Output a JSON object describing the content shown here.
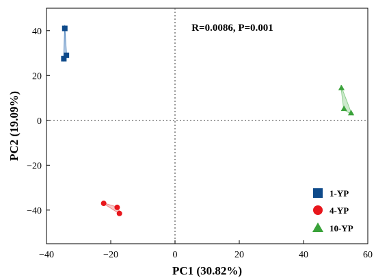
{
  "chart_data": {
    "type": "scatter",
    "xlabel": "PC1 (30.82%)",
    "ylabel": "PC2 (19.09%)",
    "annotation": "R=0.0086, P=0.001",
    "xlim": [
      -40,
      60
    ],
    "ylim": [
      -55,
      50
    ],
    "xticks": [
      -40,
      -20,
      0,
      20,
      40,
      60
    ],
    "yticks": [
      40,
      20,
      0,
      -20,
      -40
    ],
    "xtick_labels": [
      "−40",
      "−20",
      "0",
      "20",
      "40",
      "60"
    ],
    "ytick_labels": [
      "40",
      "20",
      "0",
      "−20",
      "−40"
    ],
    "reference_lines": {
      "x": 0,
      "y": 0,
      "style": "dotted"
    },
    "grid": false,
    "legend_position": "bottom-right",
    "series": [
      {
        "name": "1-YP",
        "marker": "square",
        "color": "#0e4a8a",
        "hull_color": "#5f8fc4",
        "points": [
          [
            -34.3,
            41.0
          ],
          [
            -33.8,
            29.0
          ],
          [
            -34.6,
            27.5
          ]
        ]
      },
      {
        "name": "4-YP",
        "marker": "circle",
        "color": "#e8161c",
        "hull_color": "#f08888",
        "points": [
          [
            -22.2,
            -37.0
          ],
          [
            -18.0,
            -38.8
          ],
          [
            -17.3,
            -41.5
          ]
        ]
      },
      {
        "name": "10-YP",
        "marker": "triangle",
        "color": "#3aa23a",
        "hull_color": "#90d090",
        "points": [
          [
            51.8,
            14.5
          ],
          [
            52.6,
            5.2
          ],
          [
            54.8,
            3.3
          ]
        ]
      }
    ]
  }
}
